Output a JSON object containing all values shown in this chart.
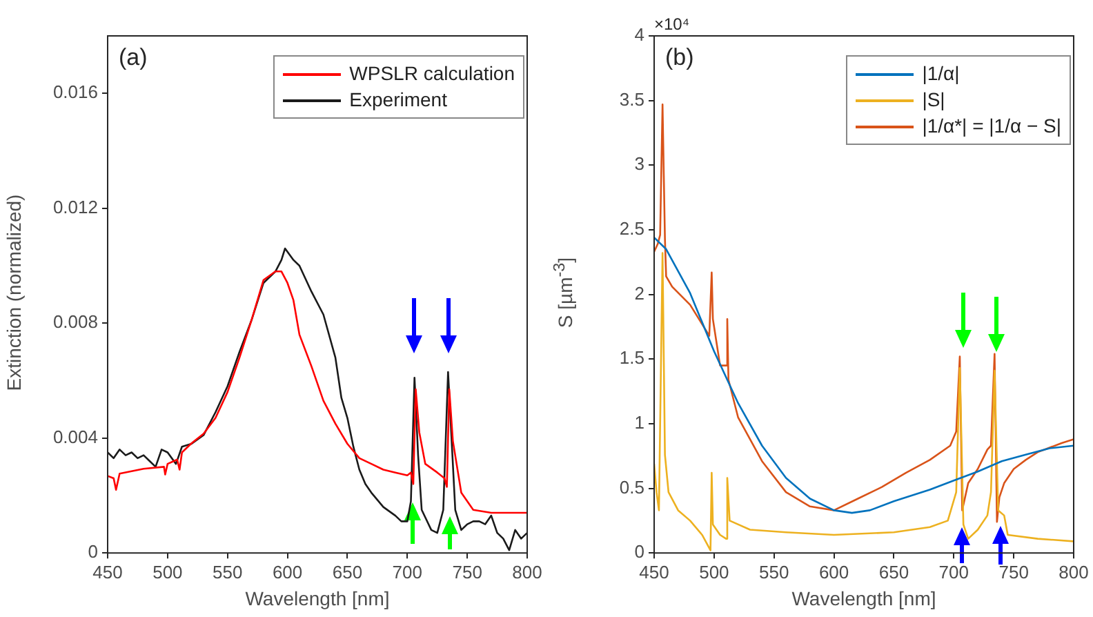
{
  "chart_data": [
    {
      "type": "line",
      "xlabel": "Wavelength [nm]",
      "ylabel": "Extinction (normalized)",
      "xlim": [
        450,
        800
      ],
      "xticks": [
        450,
        500,
        550,
        600,
        650,
        700,
        750,
        800
      ],
      "ylim": [
        0,
        0.018
      ],
      "yticks": [
        0,
        0.004,
        0.008,
        0.012,
        0.016
      ],
      "legend": "top right",
      "grid": false,
      "marker": "none",
      "annotations": [
        "(a)"
      ],
      "series": [
        {
          "name": "WPSLR calculation",
          "color": "#ff0000",
          "x": [
            450,
            455,
            457,
            460,
            480,
            497,
            498,
            500,
            508,
            510,
            512,
            520,
            530,
            540,
            550,
            560,
            570,
            580,
            590,
            595,
            600,
            605,
            610,
            620,
            630,
            640,
            650,
            660,
            670,
            680,
            690,
            700,
            703,
            705,
            707,
            710,
            715,
            725,
            731,
            733,
            735,
            738,
            745,
            755,
            770,
            800
          ],
          "values": [
            0.00268,
            0.0026,
            0.0022,
            0.00276,
            0.00293,
            0.003,
            0.00273,
            0.0031,
            0.00325,
            0.0029,
            0.0035,
            0.00382,
            0.00415,
            0.0047,
            0.0056,
            0.0068,
            0.0081,
            0.0095,
            0.0098,
            0.0098,
            0.0094,
            0.0088,
            0.0076,
            0.0065,
            0.0053,
            0.0045,
            0.0038,
            0.0033,
            0.0031,
            0.0029,
            0.0028,
            0.0027,
            0.0028,
            0.0024,
            0.0057,
            0.0042,
            0.0031,
            0.0028,
            0.0026,
            0.0023,
            0.0057,
            0.0039,
            0.0021,
            0.0015,
            0.0014,
            0.0014
          ]
        },
        {
          "name": "Experiment",
          "color": "#1a1a1a",
          "x": [
            450,
            455,
            460,
            465,
            470,
            475,
            480,
            485,
            490,
            495,
            500,
            507,
            512,
            520,
            530,
            540,
            550,
            560,
            570,
            580,
            590,
            595,
            598,
            605,
            610,
            620,
            630,
            640,
            645,
            650,
            655,
            660,
            665,
            670,
            680,
            690,
            695,
            700,
            703,
            706,
            709,
            712,
            720,
            725,
            730,
            734,
            737,
            740,
            745,
            750,
            755,
            760,
            765,
            770,
            775,
            780,
            785,
            790,
            795,
            800
          ],
          "values": [
            0.0035,
            0.0033,
            0.0036,
            0.0034,
            0.0035,
            0.0033,
            0.0034,
            0.0032,
            0.003,
            0.0036,
            0.0035,
            0.0031,
            0.0037,
            0.0038,
            0.0041,
            0.0049,
            0.0058,
            0.007,
            0.0081,
            0.0094,
            0.0098,
            0.0102,
            0.0106,
            0.0102,
            0.01,
            0.0091,
            0.0083,
            0.0068,
            0.0054,
            0.0047,
            0.0037,
            0.0029,
            0.0024,
            0.0021,
            0.0016,
            0.0013,
            0.0011,
            0.0011,
            0.0018,
            0.0061,
            0.0034,
            0.0015,
            0.0008,
            0.0007,
            0.0015,
            0.0063,
            0.0039,
            0.0015,
            0.0008,
            0.001,
            0.0011,
            0.0011,
            0.001,
            0.0013,
            0.0007,
            0.0005,
            0.0001,
            0.0008,
            0.0005,
            0.0007
          ]
        }
      ]
    },
    {
      "type": "line",
      "xlabel": "Wavelength [nm]",
      "ylabel": "S [µm$^{-3}$]",
      "xlim": [
        450,
        800
      ],
      "xticks": [
        450,
        500,
        550,
        600,
        650,
        700,
        750,
        800
      ],
      "ylim": [
        0,
        4
      ],
      "yticks": [
        0,
        0.5,
        1,
        1.5,
        2,
        2.5,
        3,
        3.5,
        4
      ],
      "legend": "top right",
      "grid": false,
      "marker": "none",
      "annotations": [
        "(b)",
        "×10⁴"
      ],
      "series": [
        {
          "name": "|1/α|",
          "color": "#0072bd",
          "x": [
            450,
            460,
            480,
            500,
            520,
            540,
            560,
            580,
            600,
            615,
            630,
            650,
            680,
            700,
            720,
            740,
            760,
            780,
            800
          ],
          "values": [
            2.44,
            2.35,
            2.01,
            1.56,
            1.16,
            0.83,
            0.58,
            0.42,
            0.33,
            0.31,
            0.33,
            0.4,
            0.49,
            0.56,
            0.63,
            0.71,
            0.76,
            0.81,
            0.83
          ]
        },
        {
          "name": "|S|",
          "color": "#edb120",
          "x": [
            450,
            452,
            454,
            457,
            459,
            462,
            470,
            480,
            490,
            497,
            498,
            499,
            505,
            510,
            511,
            513,
            530,
            560,
            600,
            650,
            680,
            695,
            702,
            705,
            708,
            712,
            720,
            728,
            731,
            734,
            737,
            742,
            745,
            770,
            800
          ],
          "values": [
            0.69,
            0.47,
            0.33,
            2.32,
            0.76,
            0.47,
            0.33,
            0.25,
            0.14,
            0.02,
            0.62,
            0.22,
            0.14,
            0.11,
            0.58,
            0.25,
            0.18,
            0.16,
            0.14,
            0.16,
            0.2,
            0.25,
            0.47,
            1.43,
            0.22,
            0.11,
            0.18,
            0.29,
            0.47,
            1.41,
            0.33,
            0.29,
            0.14,
            0.11,
            0.09
          ]
        },
        {
          "name": "|1/α*| = |1/α − S|",
          "color": "#d95319",
          "x": [
            450,
            453,
            455,
            457,
            459,
            460,
            465,
            480,
            490,
            496,
            498,
            499,
            505,
            510,
            511,
            512,
            520,
            540,
            560,
            580,
            600,
            620,
            640,
            660,
            680,
            697,
            702,
            705,
            707,
            712,
            720,
            728,
            731,
            734,
            736,
            738,
            742,
            750,
            760,
            770,
            790,
            800
          ],
          "values": [
            2.33,
            2.39,
            2.46,
            3.47,
            2.43,
            2.14,
            2.06,
            1.92,
            1.77,
            1.68,
            2.17,
            1.81,
            1.45,
            1.45,
            1.81,
            1.34,
            1.05,
            0.71,
            0.47,
            0.36,
            0.33,
            0.42,
            0.51,
            0.62,
            0.72,
            0.83,
            0.94,
            1.52,
            0.33,
            0.54,
            0.65,
            0.8,
            0.83,
            1.54,
            0.24,
            0.43,
            0.54,
            0.65,
            0.72,
            0.78,
            0.85,
            0.88
          ]
        }
      ]
    }
  ]
}
